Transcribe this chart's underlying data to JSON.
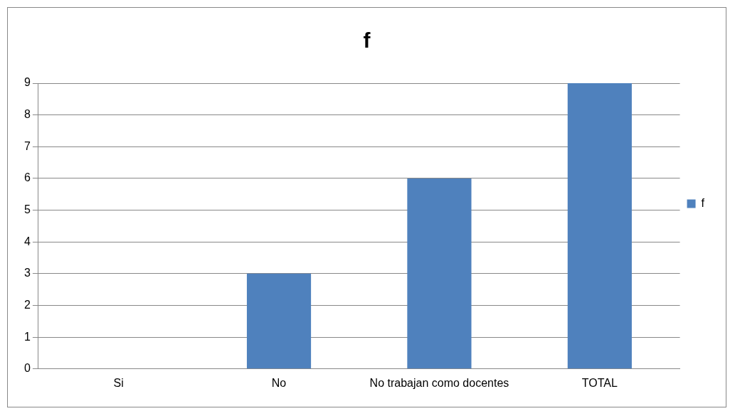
{
  "chart_data": {
    "type": "bar",
    "title": "f",
    "categories": [
      "Si",
      "No",
      "No trabajan como docentes",
      "TOTAL"
    ],
    "series": [
      {
        "name": "f",
        "color": "#4f81bd",
        "values": [
          0,
          3,
          6,
          9
        ]
      }
    ],
    "ylim": [
      0,
      9
    ],
    "yticks": [
      0,
      1,
      2,
      3,
      4,
      5,
      6,
      7,
      8,
      9
    ],
    "grid": "y",
    "legend": "right"
  }
}
